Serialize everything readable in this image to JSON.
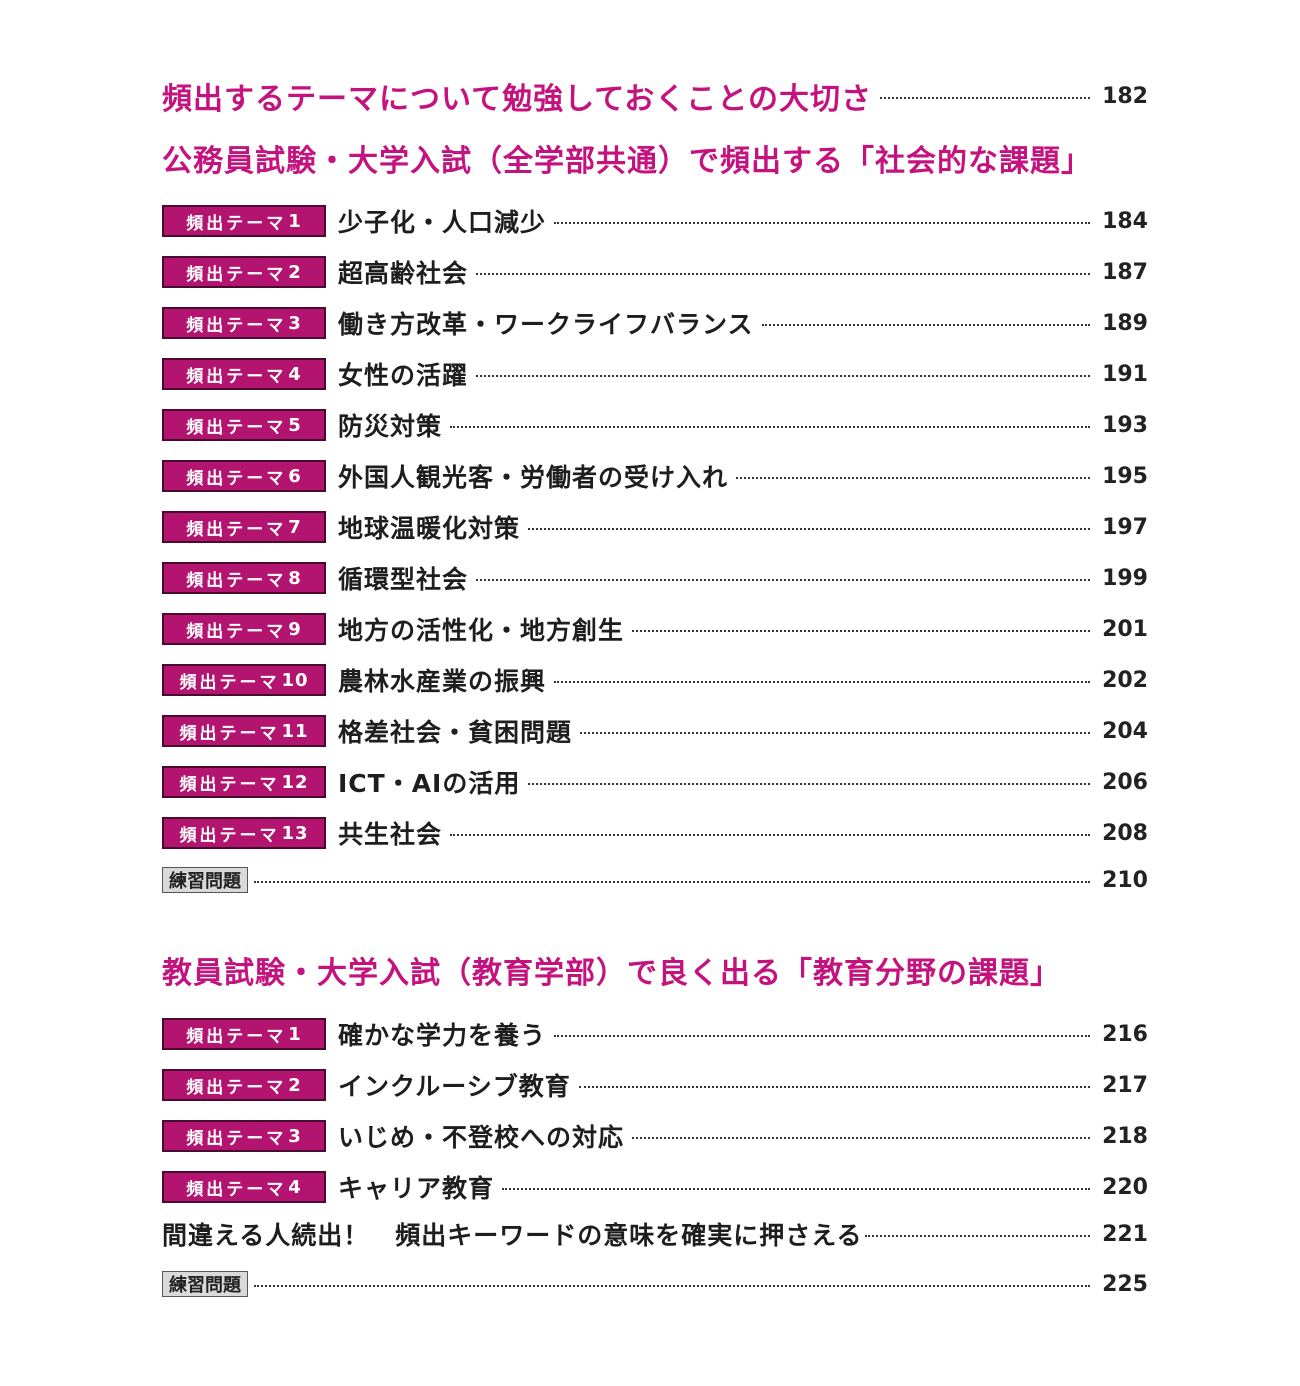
{
  "intro": {
    "title": "頻出するテーマについて勉強しておくことの大切さ",
    "page": "182"
  },
  "section1": {
    "heading": "公務員試験・大学入試（全学部共通）で頻出する「社会的な課題」",
    "badge_text": "頻出テーマ",
    "items": [
      {
        "num": "1",
        "label": "少子化・人口減少",
        "page": "184"
      },
      {
        "num": "2",
        "label": "超高齢社会",
        "page": "187"
      },
      {
        "num": "3",
        "label": "働き方改革・ワークライフバランス",
        "page": "189"
      },
      {
        "num": "4",
        "label": "女性の活躍",
        "page": "191"
      },
      {
        "num": "5",
        "label": "防災対策",
        "page": "193"
      },
      {
        "num": "6",
        "label": "外国人観光客・労働者の受け入れ",
        "page": "195"
      },
      {
        "num": "7",
        "label": "地球温暖化対策",
        "page": "197"
      },
      {
        "num": "8",
        "label": "循環型社会",
        "page": "199"
      },
      {
        "num": "9",
        "label": "地方の活性化・地方創生",
        "page": "201"
      },
      {
        "num": "10",
        "label": "農林水産業の振興",
        "page": "202"
      },
      {
        "num": "11",
        "label": "格差社会・貧困問題",
        "page": "204"
      },
      {
        "num": "12",
        "label": "ICT・AIの活用",
        "page": "206"
      },
      {
        "num": "13",
        "label": "共生社会",
        "page": "208"
      }
    ],
    "practice": {
      "label": "練習問題",
      "page": "210"
    }
  },
  "section2": {
    "heading": "教員試験・大学入試（教育学部）で良く出る「教育分野の課題」",
    "badge_text": "頻出テーマ",
    "items": [
      {
        "num": "1",
        "label": "確かな学力を養う",
        "page": "216"
      },
      {
        "num": "2",
        "label": "インクルーシブ教育",
        "page": "217"
      },
      {
        "num": "3",
        "label": "いじめ・不登校への対応",
        "page": "218"
      },
      {
        "num": "4",
        "label": "キャリア教育",
        "page": "220"
      }
    ],
    "keywords": {
      "label": "間違える人続出！　頻出キーワードの意味を確実に押さえる",
      "page": "221"
    },
    "practice": {
      "label": "練習問題",
      "page": "225"
    }
  }
}
